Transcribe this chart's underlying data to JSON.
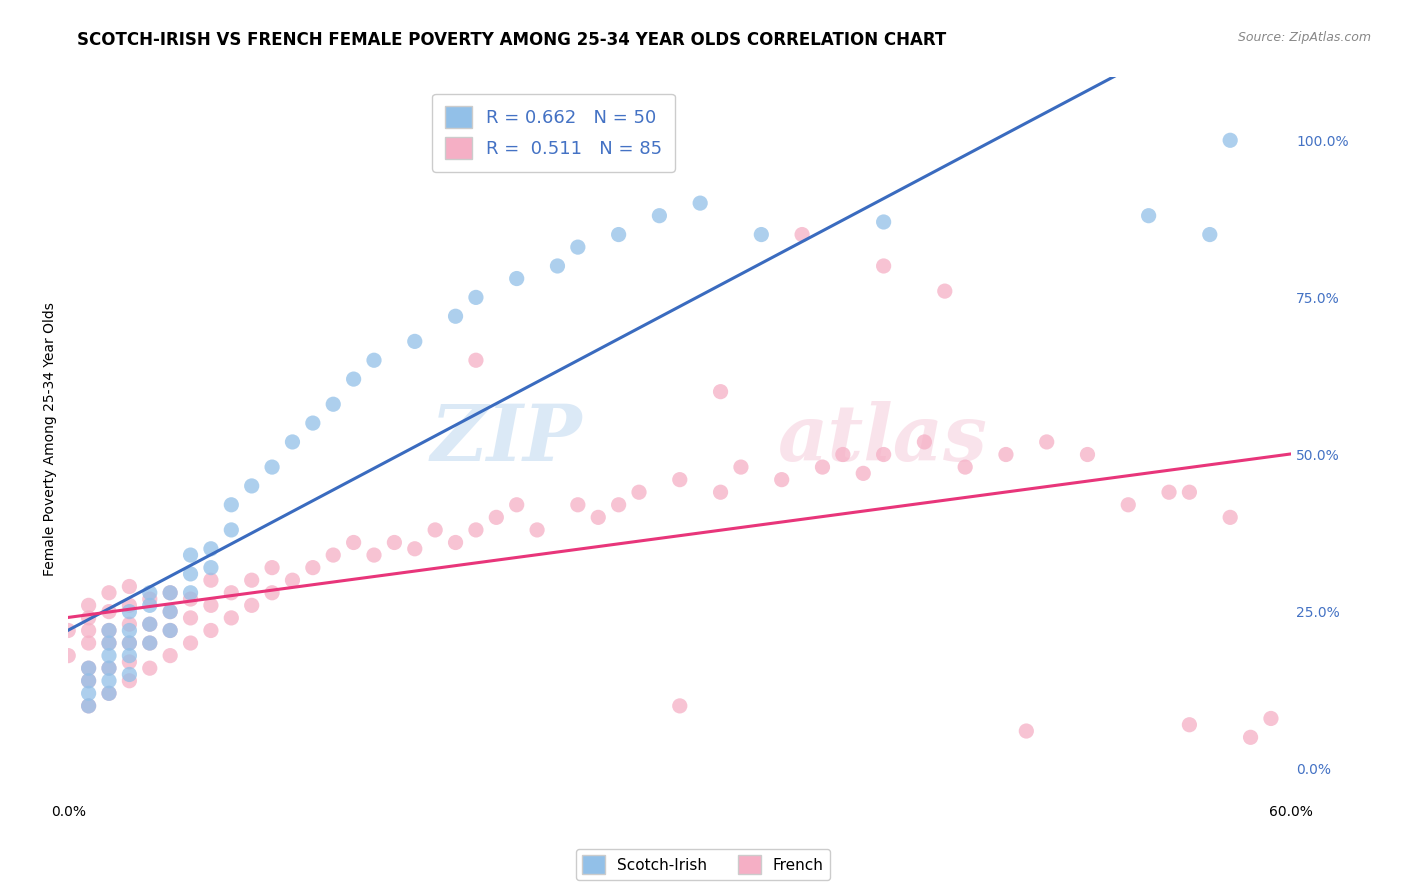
{
  "title": "SCOTCH-IRISH VS FRENCH FEMALE POVERTY AMONG 25-34 YEAR OLDS CORRELATION CHART",
  "source": "Source: ZipAtlas.com",
  "ylabel": "Female Poverty Among 25-34 Year Olds",
  "xlim": [
    0.0,
    0.6
  ],
  "ylim": [
    -0.05,
    1.1
  ],
  "x_ticks": [
    0.0,
    0.12,
    0.24,
    0.36,
    0.48,
    0.6
  ],
  "x_tick_labels": [
    "0.0%",
    "",
    "",
    "",
    "",
    "60.0%"
  ],
  "y_ticks_right": [
    0.0,
    0.25,
    0.5,
    0.75,
    1.0
  ],
  "y_tick_labels_right": [
    "0.0%",
    "25.0%",
    "50.0%",
    "75.0%",
    "100.0%"
  ],
  "scotch_irish_color": "#92c0e8",
  "french_color": "#f5afc5",
  "scotch_irish_line_color": "#3a6bbf",
  "french_line_color": "#e8357a",
  "R_scotch": 0.662,
  "N_scotch": 50,
  "R_french": 0.511,
  "N_french": 85,
  "legend_labels": [
    "Scotch-Irish",
    "French"
  ],
  "watermark_zip": "ZIP",
  "watermark_atlas": "atlas",
  "background_color": "#ffffff",
  "grid_color": "#dddddd",
  "title_fontsize": 12,
  "axis_fontsize": 10,
  "tick_fontsize": 10,
  "source_fontsize": 9,
  "scotch_irish_x": [
    0.01,
    0.01,
    0.01,
    0.01,
    0.02,
    0.02,
    0.02,
    0.02,
    0.02,
    0.02,
    0.03,
    0.03,
    0.03,
    0.03,
    0.03,
    0.04,
    0.04,
    0.04,
    0.04,
    0.05,
    0.05,
    0.05,
    0.06,
    0.06,
    0.06,
    0.07,
    0.07,
    0.08,
    0.08,
    0.09,
    0.1,
    0.11,
    0.12,
    0.13,
    0.14,
    0.15,
    0.17,
    0.19,
    0.2,
    0.22,
    0.24,
    0.25,
    0.27,
    0.29,
    0.31,
    0.34,
    0.4,
    0.53,
    0.56,
    0.57
  ],
  "scotch_irish_y": [
    0.1,
    0.12,
    0.14,
    0.16,
    0.12,
    0.14,
    0.16,
    0.18,
    0.2,
    0.22,
    0.15,
    0.18,
    0.2,
    0.22,
    0.25,
    0.2,
    0.23,
    0.26,
    0.28,
    0.22,
    0.25,
    0.28,
    0.28,
    0.31,
    0.34,
    0.32,
    0.35,
    0.38,
    0.42,
    0.45,
    0.48,
    0.52,
    0.55,
    0.58,
    0.62,
    0.65,
    0.68,
    0.72,
    0.75,
    0.78,
    0.8,
    0.83,
    0.85,
    0.88,
    0.9,
    0.85,
    0.87,
    0.88,
    0.85,
    1.0
  ],
  "french_x": [
    0.0,
    0.0,
    0.01,
    0.01,
    0.01,
    0.01,
    0.01,
    0.01,
    0.01,
    0.02,
    0.02,
    0.02,
    0.02,
    0.02,
    0.02,
    0.03,
    0.03,
    0.03,
    0.03,
    0.03,
    0.03,
    0.04,
    0.04,
    0.04,
    0.04,
    0.05,
    0.05,
    0.05,
    0.05,
    0.06,
    0.06,
    0.06,
    0.07,
    0.07,
    0.07,
    0.08,
    0.08,
    0.09,
    0.09,
    0.1,
    0.1,
    0.11,
    0.12,
    0.13,
    0.14,
    0.15,
    0.16,
    0.17,
    0.18,
    0.19,
    0.2,
    0.21,
    0.22,
    0.23,
    0.25,
    0.26,
    0.27,
    0.28,
    0.3,
    0.32,
    0.33,
    0.35,
    0.37,
    0.38,
    0.39,
    0.4,
    0.42,
    0.44,
    0.46,
    0.48,
    0.5,
    0.52,
    0.54,
    0.55,
    0.57,
    0.59,
    0.4,
    0.43,
    0.2,
    0.32,
    0.47,
    0.55,
    0.58,
    0.3,
    0.36
  ],
  "french_y": [
    0.18,
    0.22,
    0.1,
    0.14,
    0.16,
    0.2,
    0.22,
    0.24,
    0.26,
    0.12,
    0.16,
    0.2,
    0.22,
    0.25,
    0.28,
    0.14,
    0.17,
    0.2,
    0.23,
    0.26,
    0.29,
    0.16,
    0.2,
    0.23,
    0.27,
    0.18,
    0.22,
    0.25,
    0.28,
    0.2,
    0.24,
    0.27,
    0.22,
    0.26,
    0.3,
    0.24,
    0.28,
    0.26,
    0.3,
    0.28,
    0.32,
    0.3,
    0.32,
    0.34,
    0.36,
    0.34,
    0.36,
    0.35,
    0.38,
    0.36,
    0.38,
    0.4,
    0.42,
    0.38,
    0.42,
    0.4,
    0.42,
    0.44,
    0.46,
    0.44,
    0.48,
    0.46,
    0.48,
    0.5,
    0.47,
    0.5,
    0.52,
    0.48,
    0.5,
    0.52,
    0.5,
    0.42,
    0.44,
    0.44,
    0.4,
    0.08,
    0.8,
    0.76,
    0.65,
    0.6,
    0.06,
    0.07,
    0.05,
    0.1,
    0.85
  ]
}
